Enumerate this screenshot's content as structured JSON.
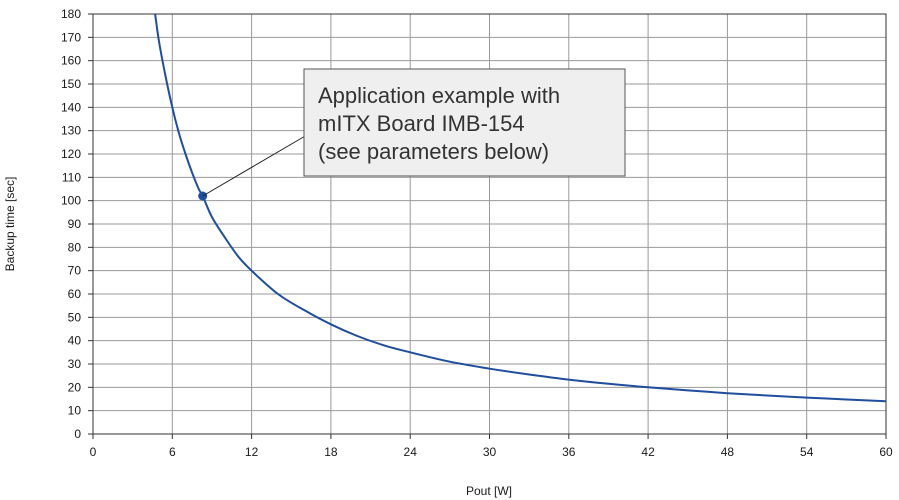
{
  "chart_data": {
    "type": "line",
    "title": "",
    "xlabel": "Pout [W]",
    "ylabel": "Backup time [sec]",
    "xlim": [
      0,
      60
    ],
    "ylim": [
      0,
      180
    ],
    "x_ticks": [
      0,
      6,
      12,
      18,
      24,
      30,
      36,
      42,
      48,
      54,
      60
    ],
    "y_ticks": [
      0,
      10,
      20,
      30,
      40,
      50,
      60,
      70,
      80,
      90,
      100,
      110,
      120,
      130,
      140,
      150,
      160,
      170,
      180
    ],
    "grid": true,
    "series": [
      {
        "color": "#1f4e9c",
        "x": [
          4.7,
          5.0,
          5.5,
          6.0,
          6.5,
          7.0,
          7.5,
          8.0,
          8.3,
          9.0,
          10.0,
          11.0,
          12.0,
          14.0,
          16.0,
          18.0,
          20.0,
          22.0,
          24.0,
          27.0,
          30.0,
          33.0,
          36.0,
          39.0,
          42.0,
          45.0,
          48.0,
          51.0,
          54.0,
          57.0,
          60.0
        ],
        "y": [
          180,
          168,
          153,
          140,
          129,
          120,
          112,
          105,
          102,
          93,
          84,
          76,
          70,
          60,
          53,
          47,
          42,
          38,
          35,
          31,
          28,
          25.5,
          23.3,
          21.5,
          20,
          18.7,
          17.5,
          16.5,
          15.6,
          14.8,
          14
        ]
      }
    ],
    "highlight_point": {
      "x": 8.3,
      "y": 102,
      "color": "#1f4e9c"
    },
    "annotation": {
      "lines": [
        "Application example with",
        "mITX Board IMB-154",
        "(see parameters below)"
      ],
      "box_fill": "#efefef",
      "box_stroke": "#555555"
    }
  }
}
